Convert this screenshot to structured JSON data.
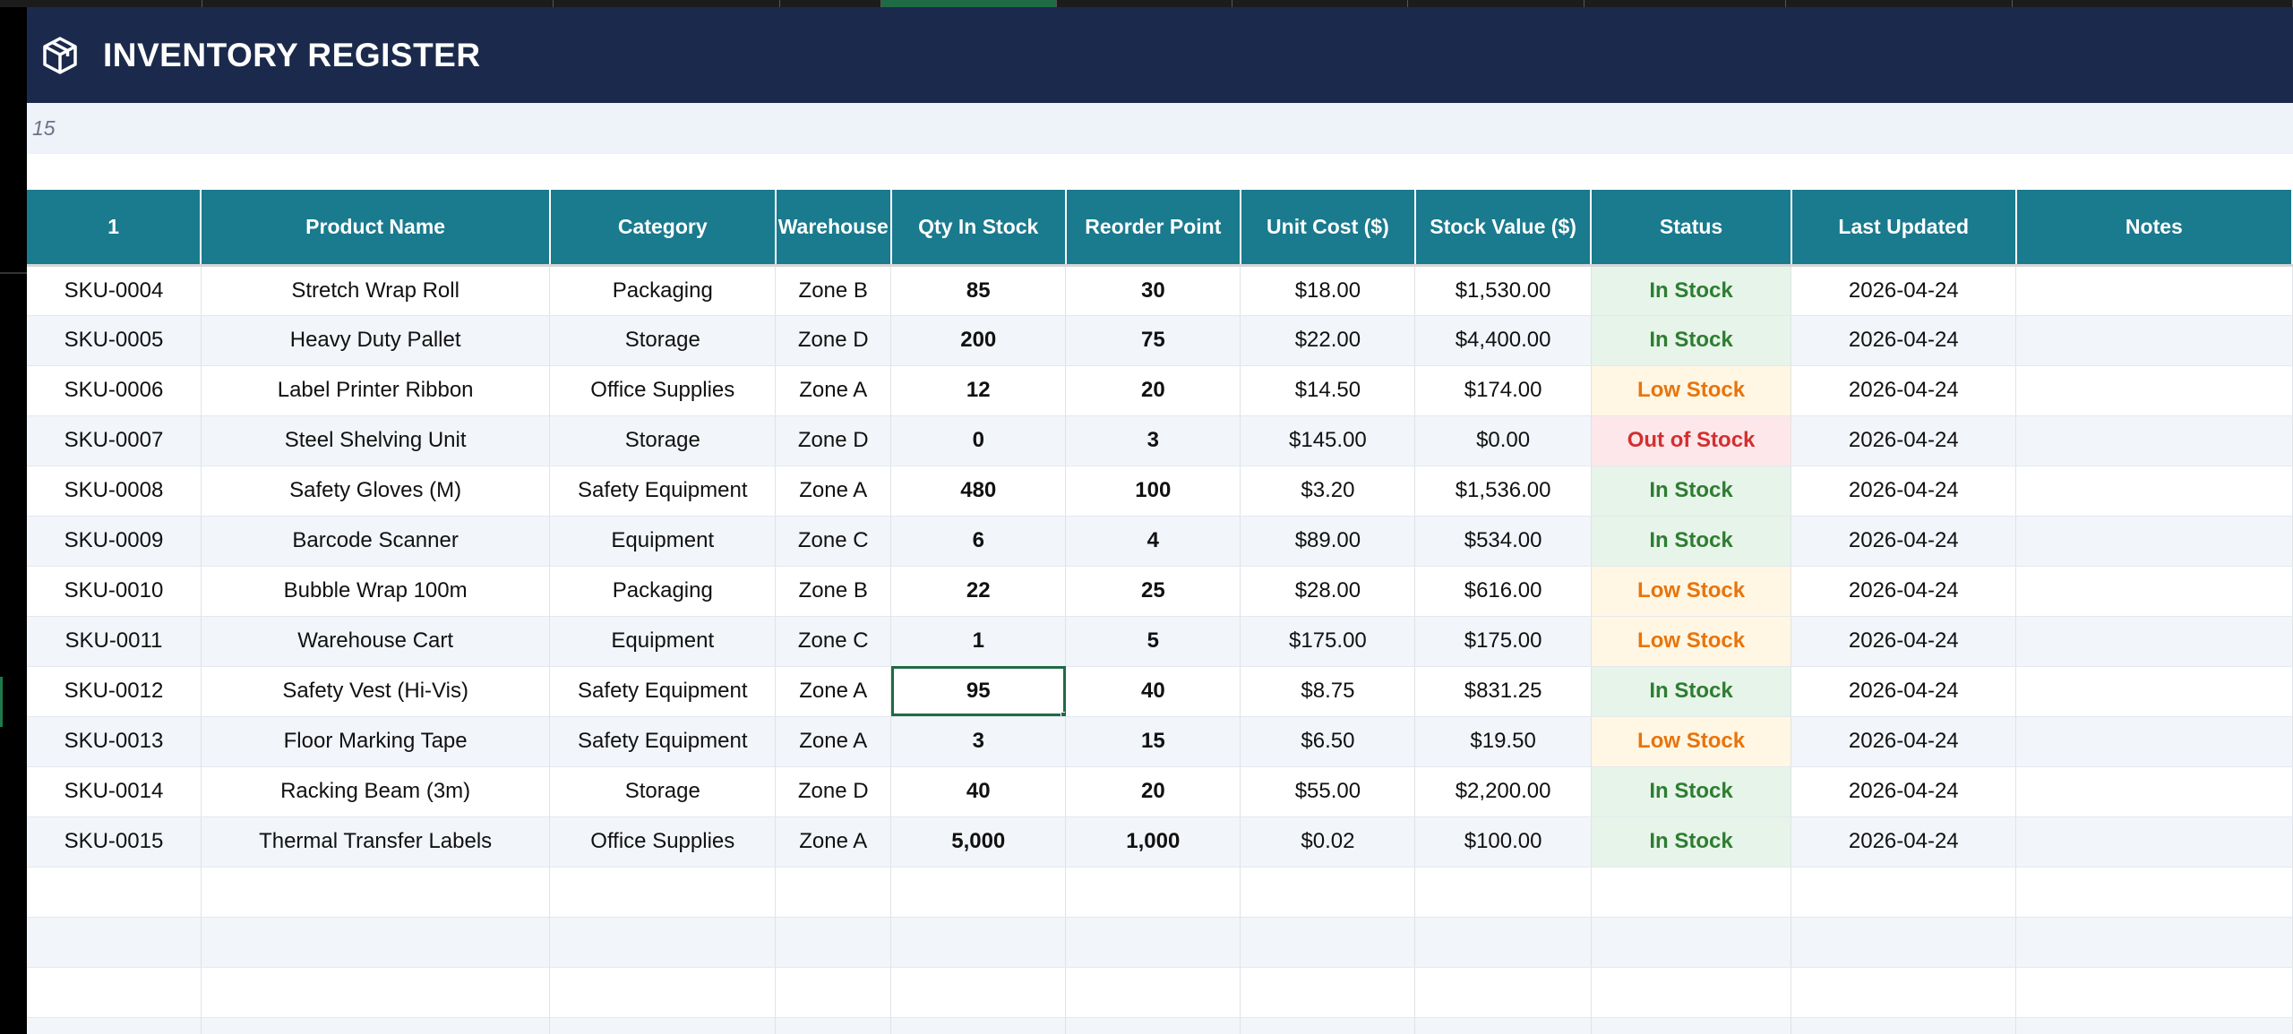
{
  "title": {
    "text": "INVENTORY REGISTER",
    "icon": "box-icon"
  },
  "subtitle": "15",
  "colors": {
    "title_bg": "#1b2a4c",
    "header_bg": "#1a7a8e",
    "in_stock": "#2e7d32",
    "low_stock": "#e8740c",
    "out_of_stock": "#d32f2f"
  },
  "table": {
    "headers": [
      "1",
      "Product Name",
      "Category",
      "Warehouse",
      "Qty In Stock",
      "Reorder Point",
      "Unit Cost ($)",
      "Stock Value ($)",
      "Status",
      "Last Updated",
      "Notes"
    ],
    "rows": [
      {
        "sku": "SKU-0004",
        "name": "Stretch Wrap Roll",
        "category": "Packaging",
        "zone": "Zone B",
        "qty": "85",
        "reorder": "30",
        "cost": "$18.00",
        "value": "$1,530.00",
        "status": "In Stock",
        "status_type": "in",
        "updated": "2026-04-24",
        "notes": ""
      },
      {
        "sku": "SKU-0005",
        "name": "Heavy Duty Pallet",
        "category": "Storage",
        "zone": "Zone D",
        "qty": "200",
        "reorder": "75",
        "cost": "$22.00",
        "value": "$4,400.00",
        "status": "In Stock",
        "status_type": "in",
        "updated": "2026-04-24",
        "notes": ""
      },
      {
        "sku": "SKU-0006",
        "name": "Label Printer Ribbon",
        "category": "Office Supplies",
        "zone": "Zone A",
        "qty": "12",
        "reorder": "20",
        "cost": "$14.50",
        "value": "$174.00",
        "status": "Low Stock",
        "status_type": "low",
        "updated": "2026-04-24",
        "notes": ""
      },
      {
        "sku": "SKU-0007",
        "name": "Steel Shelving Unit",
        "category": "Storage",
        "zone": "Zone D",
        "qty": "0",
        "reorder": "3",
        "cost": "$145.00",
        "value": "$0.00",
        "status": "Out of Stock",
        "status_type": "out",
        "updated": "2026-04-24",
        "notes": ""
      },
      {
        "sku": "SKU-0008",
        "name": "Safety Gloves (M)",
        "category": "Safety Equipment",
        "zone": "Zone A",
        "qty": "480",
        "reorder": "100",
        "cost": "$3.20",
        "value": "$1,536.00",
        "status": "In Stock",
        "status_type": "in",
        "updated": "2026-04-24",
        "notes": ""
      },
      {
        "sku": "SKU-0009",
        "name": "Barcode Scanner",
        "category": "Equipment",
        "zone": "Zone C",
        "qty": "6",
        "reorder": "4",
        "cost": "$89.00",
        "value": "$534.00",
        "status": "In Stock",
        "status_type": "in",
        "updated": "2026-04-24",
        "notes": ""
      },
      {
        "sku": "SKU-0010",
        "name": "Bubble Wrap 100m",
        "category": "Packaging",
        "zone": "Zone B",
        "qty": "22",
        "reorder": "25",
        "cost": "$28.00",
        "value": "$616.00",
        "status": "Low Stock",
        "status_type": "low",
        "updated": "2026-04-24",
        "notes": ""
      },
      {
        "sku": "SKU-0011",
        "name": "Warehouse Cart",
        "category": "Equipment",
        "zone": "Zone C",
        "qty": "1",
        "reorder": "5",
        "cost": "$175.00",
        "value": "$175.00",
        "status": "Low Stock",
        "status_type": "low",
        "updated": "2026-04-24",
        "notes": ""
      },
      {
        "sku": "SKU-0012",
        "name": "Safety Vest (Hi-Vis)",
        "category": "Safety Equipment",
        "zone": "Zone A",
        "qty": "95",
        "reorder": "40",
        "cost": "$8.75",
        "value": "$831.25",
        "status": "In Stock",
        "status_type": "in",
        "updated": "2026-04-24",
        "notes": "",
        "selected": "qty"
      },
      {
        "sku": "SKU-0013",
        "name": "Floor Marking Tape",
        "category": "Safety Equipment",
        "zone": "Zone A",
        "qty": "3",
        "reorder": "15",
        "cost": "$6.50",
        "value": "$19.50",
        "status": "Low Stock",
        "status_type": "low",
        "updated": "2026-04-24",
        "notes": ""
      },
      {
        "sku": "SKU-0014",
        "name": "Racking Beam (3m)",
        "category": "Storage",
        "zone": "Zone D",
        "qty": "40",
        "reorder": "20",
        "cost": "$55.00",
        "value": "$2,200.00",
        "status": "In Stock",
        "status_type": "in",
        "updated": "2026-04-24",
        "notes": ""
      },
      {
        "sku": "SKU-0015",
        "name": "Thermal Transfer Labels",
        "category": "Office Supplies",
        "zone": "Zone A",
        "qty": "5,000",
        "reorder": "1,000",
        "cost": "$0.02",
        "value": "$100.00",
        "status": "In Stock",
        "status_type": "in",
        "updated": "2026-04-24",
        "notes": ""
      }
    ],
    "empty_rows": 4
  }
}
